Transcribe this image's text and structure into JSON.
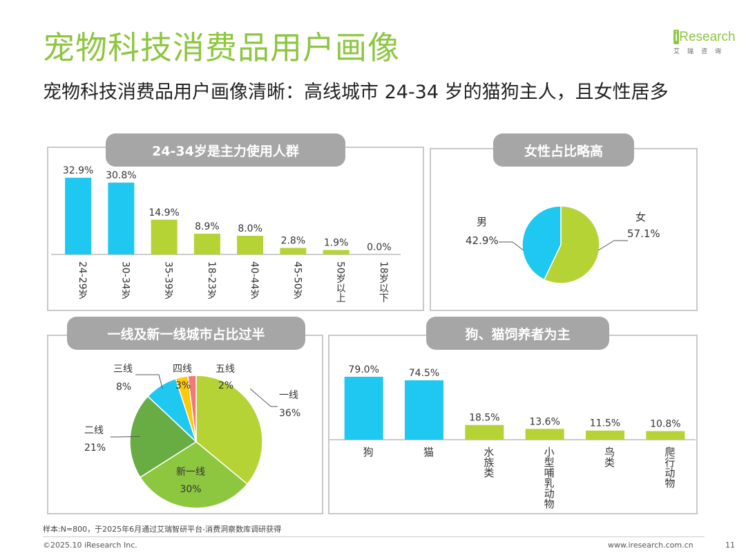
{
  "header": {
    "title": "宠物科技消费品用户画像",
    "subtitle": "宠物科技消费品用户画像清晰：高线城市 24-34 岁的猫狗主人，且女性居多",
    "logo_brand": "iResearch",
    "logo_cn": "艾瑞咨询"
  },
  "colors": {
    "green": "#B5D334",
    "blue": "#1EC8F0",
    "title_green": "#8DC63F",
    "gray_title": "#A6A6A6"
  },
  "panels": {
    "age": {
      "title": "24-34岁是主力使用人群"
    },
    "gender": {
      "title": "女性占比略高"
    },
    "city": {
      "title": "一线及新一线城市占比过半"
    },
    "pet": {
      "title": "狗、猫饲养者为主"
    }
  },
  "chart_data": [
    {
      "id": "age",
      "type": "bar",
      "categories": [
        "24-29岁",
        "30-34岁",
        "35-39岁",
        "18-23岁",
        "40-44岁",
        "45-50岁",
        "50岁以上",
        "18岁以下"
      ],
      "values": [
        32.9,
        30.8,
        14.9,
        8.9,
        8.0,
        2.8,
        1.9,
        0.0
      ],
      "value_labels": [
        "32.9%",
        "30.8%",
        "14.9%",
        "8.9%",
        "8.0%",
        "2.8%",
        "1.9%",
        "0.0%"
      ],
      "bar_colors": [
        "#1EC8F0",
        "#1EC8F0",
        "#B5D334",
        "#B5D334",
        "#B5D334",
        "#B5D334",
        "#B5D334",
        "#B5D334"
      ],
      "ylim": [
        0,
        35
      ]
    },
    {
      "id": "gender",
      "type": "pie",
      "labels": [
        "女",
        "男"
      ],
      "values": [
        57.1,
        42.9
      ],
      "value_labels": [
        "57.1%",
        "42.9%"
      ],
      "colors": [
        "#B5D334",
        "#1EC8F0"
      ]
    },
    {
      "id": "city",
      "type": "pie",
      "labels": [
        "一线",
        "新一线",
        "二线",
        "三线",
        "四线",
        "五线"
      ],
      "values": [
        36,
        30,
        21,
        8,
        3,
        2
      ],
      "value_labels": [
        "36%",
        "30%",
        "21%",
        "8%",
        "3%",
        "2%"
      ],
      "colors": [
        "#B5D334",
        "#8DC63F",
        "#67AD43",
        "#1EC8F0",
        "#FFC80A",
        "#F07A7A"
      ]
    },
    {
      "id": "pet",
      "type": "bar",
      "categories": [
        "狗",
        "猫",
        "水族类",
        "小型哺乳动物",
        "鸟类",
        "爬行动物"
      ],
      "values": [
        79.0,
        74.5,
        18.5,
        13.6,
        11.5,
        10.8
      ],
      "value_labels": [
        "79.0%",
        "74.5%",
        "18.5%",
        "13.6%",
        "11.5%",
        "10.8%"
      ],
      "bar_colors": [
        "#1EC8F0",
        "#1EC8F0",
        "#B5D334",
        "#B5D334",
        "#B5D334",
        "#B5D334"
      ],
      "ylim": [
        0,
        85
      ]
    }
  ],
  "footer": {
    "note": "样本:N=800，于2025年6月通过艾瑞智研平台-消费洞察数库调研获得",
    "copyright": "©2025.10 iResearch Inc.",
    "url": "www.iresearch.com.cn",
    "page": "11"
  }
}
